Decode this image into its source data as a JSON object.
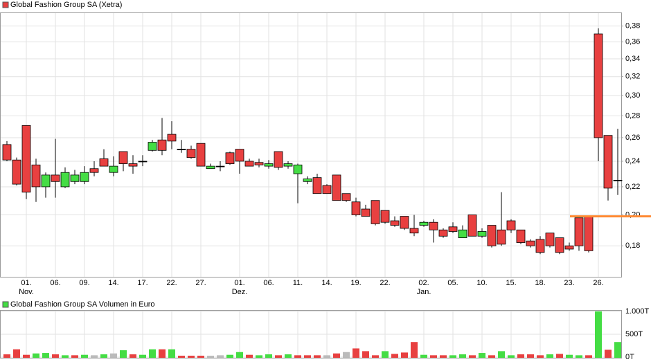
{
  "chart_data": [
    {
      "type": "candlestick",
      "title": "Global Fashion Group SA (Xetra)",
      "categories": [
        null,
        null,
        "01.",
        null,
        null,
        "06.",
        null,
        null,
        "09.",
        null,
        null,
        "14.",
        null,
        null,
        "17.",
        null,
        null,
        "22.",
        null,
        null,
        "27.",
        null,
        null,
        null,
        "01.",
        null,
        null,
        "06.",
        null,
        null,
        "11.",
        null,
        null,
        "14.",
        null,
        null,
        "19.",
        null,
        null,
        "22.",
        null,
        null,
        null,
        "02.",
        null,
        null,
        "05.",
        null,
        null,
        "10.",
        null,
        null,
        "15.",
        null,
        null,
        "18.",
        null,
        null,
        "23.",
        null,
        null,
        "26.",
        null,
        null
      ],
      "months": [
        null,
        null,
        "Nov.",
        null,
        null,
        null,
        null,
        null,
        null,
        null,
        null,
        null,
        null,
        null,
        null,
        null,
        null,
        null,
        null,
        null,
        null,
        null,
        null,
        null,
        "Dez.",
        null,
        null,
        null,
        null,
        null,
        null,
        null,
        null,
        null,
        null,
        null,
        null,
        null,
        null,
        null,
        null,
        null,
        null,
        "Jan.",
        null,
        null,
        null,
        null,
        null,
        null,
        null,
        null,
        null,
        null,
        null,
        null,
        null,
        null,
        null,
        null,
        null,
        null,
        null,
        null
      ],
      "open": [
        0.254,
        0.241,
        0.271,
        0.237,
        0.22,
        0.229,
        0.22,
        0.224,
        0.224,
        0.234,
        0.242,
        0.231,
        0.248,
        0.238,
        0.24,
        0.249,
        0.258,
        0.263,
        0.25,
        0.25,
        0.255,
        0.234,
        0.236,
        0.247,
        0.25,
        0.24,
        0.239,
        0.236,
        0.248,
        0.236,
        0.23,
        0.224,
        0.227,
        0.221,
        0.229,
        0.215,
        0.209,
        0.204,
        0.21,
        0.203,
        0.196,
        0.199,
        0.191,
        0.193,
        0.195,
        0.19,
        0.192,
        0.185,
        0.2,
        0.186,
        0.193,
        0.19,
        0.196,
        0.19,
        0.183,
        0.184,
        0.188,
        0.185,
        0.18,
        0.198,
        0.199,
        0.37,
        0.262,
        0.225
      ],
      "high": [
        0.257,
        0.243,
        0.271,
        0.242,
        0.231,
        0.259,
        0.235,
        0.233,
        0.236,
        0.24,
        0.25,
        0.244,
        0.248,
        0.245,
        0.245,
        0.258,
        0.278,
        0.275,
        0.258,
        0.253,
        0.255,
        0.238,
        0.24,
        0.248,
        0.25,
        0.242,
        0.242,
        0.241,
        0.248,
        0.24,
        0.238,
        0.228,
        0.23,
        0.222,
        0.229,
        0.215,
        0.212,
        0.207,
        0.21,
        0.203,
        0.199,
        0.199,
        0.2,
        0.196,
        0.197,
        0.191,
        0.195,
        0.193,
        0.2,
        0.191,
        0.193,
        0.216,
        0.197,
        0.19,
        0.184,
        0.186,
        0.188,
        0.185,
        0.182,
        0.198,
        0.199,
        0.377,
        0.262,
        0.268
      ],
      "low": [
        0.24,
        0.221,
        0.211,
        0.209,
        0.212,
        0.212,
        0.219,
        0.222,
        0.222,
        0.228,
        0.236,
        0.228,
        0.232,
        0.23,
        0.236,
        0.248,
        0.245,
        0.25,
        0.247,
        0.242,
        0.236,
        0.234,
        0.232,
        0.237,
        0.23,
        0.236,
        0.235,
        0.234,
        0.233,
        0.234,
        0.208,
        0.222,
        0.215,
        0.215,
        0.21,
        0.209,
        0.199,
        0.199,
        0.193,
        0.194,
        0.192,
        0.19,
        0.186,
        0.192,
        0.182,
        0.185,
        0.188,
        0.185,
        0.186,
        0.185,
        0.179,
        0.18,
        0.188,
        0.181,
        0.179,
        0.175,
        0.179,
        0.175,
        0.177,
        0.177,
        0.176,
        0.24,
        0.21,
        0.214
      ],
      "close": [
        0.241,
        0.222,
        0.216,
        0.22,
        0.229,
        0.224,
        0.231,
        0.229,
        0.231,
        0.231,
        0.236,
        0.236,
        0.238,
        0.236,
        0.24,
        0.256,
        0.249,
        0.257,
        0.25,
        0.243,
        0.236,
        0.236,
        0.236,
        0.238,
        0.24,
        0.236,
        0.237,
        0.238,
        0.235,
        0.238,
        0.237,
        0.226,
        0.215,
        0.215,
        0.21,
        0.21,
        0.2,
        0.199,
        0.194,
        0.195,
        0.193,
        0.191,
        0.188,
        0.195,
        0.19,
        0.186,
        0.189,
        0.19,
        0.186,
        0.189,
        0.18,
        0.181,
        0.19,
        0.182,
        0.18,
        0.176,
        0.18,
        0.176,
        0.178,
        0.18,
        0.177,
        0.26,
        0.219,
        0.225
      ],
      "up_color": "#44dd44",
      "down_color": "#e84040",
      "flat_color": "#bbbbbb",
      "ylim": [
        0.162,
        0.398
      ],
      "log_scale": true,
      "grid": true,
      "yticks": [
        {
          "value": 0.18,
          "label": "0,18"
        },
        {
          "value": 0.2,
          "label": "0,20"
        },
        {
          "value": 0.22,
          "label": "0,22"
        },
        {
          "value": 0.24,
          "label": "0,24"
        },
        {
          "value": 0.26,
          "label": "0,26"
        },
        {
          "value": 0.28,
          "label": "0,28"
        },
        {
          "value": 0.3,
          "label": "0,30"
        },
        {
          "value": 0.32,
          "label": "0,32"
        },
        {
          "value": 0.34,
          "label": "0,34"
        },
        {
          "value": 0.36,
          "label": "0,36"
        },
        {
          "value": 0.38,
          "label": "0,38"
        }
      ],
      "reference_line": {
        "value": 0.199,
        "color": "#ff8a33"
      }
    },
    {
      "type": "bar",
      "title": "Global Fashion Group SA Volumen in Euro",
      "values": [
        60,
        170,
        50,
        80,
        90,
        60,
        40,
        40,
        50,
        40,
        60,
        80,
        150,
        60,
        50,
        170,
        170,
        170,
        30,
        30,
        30,
        30,
        40,
        50,
        110,
        50,
        40,
        60,
        40,
        60,
        40,
        40,
        40,
        40,
        80,
        110,
        190,
        130,
        40,
        130,
        70,
        100,
        330,
        50,
        40,
        40,
        40,
        60,
        40,
        90,
        40,
        130,
        40,
        60,
        60,
        40,
        60,
        70,
        50,
        40,
        40,
        1000,
        160,
        330
      ],
      "ylim": [
        0,
        1000
      ],
      "grid": true,
      "yticks": [
        {
          "value": 0,
          "label": "0T"
        },
        {
          "value": 500,
          "label": "500T"
        },
        {
          "value": 1000,
          "label": "1.000T"
        }
      ]
    }
  ]
}
